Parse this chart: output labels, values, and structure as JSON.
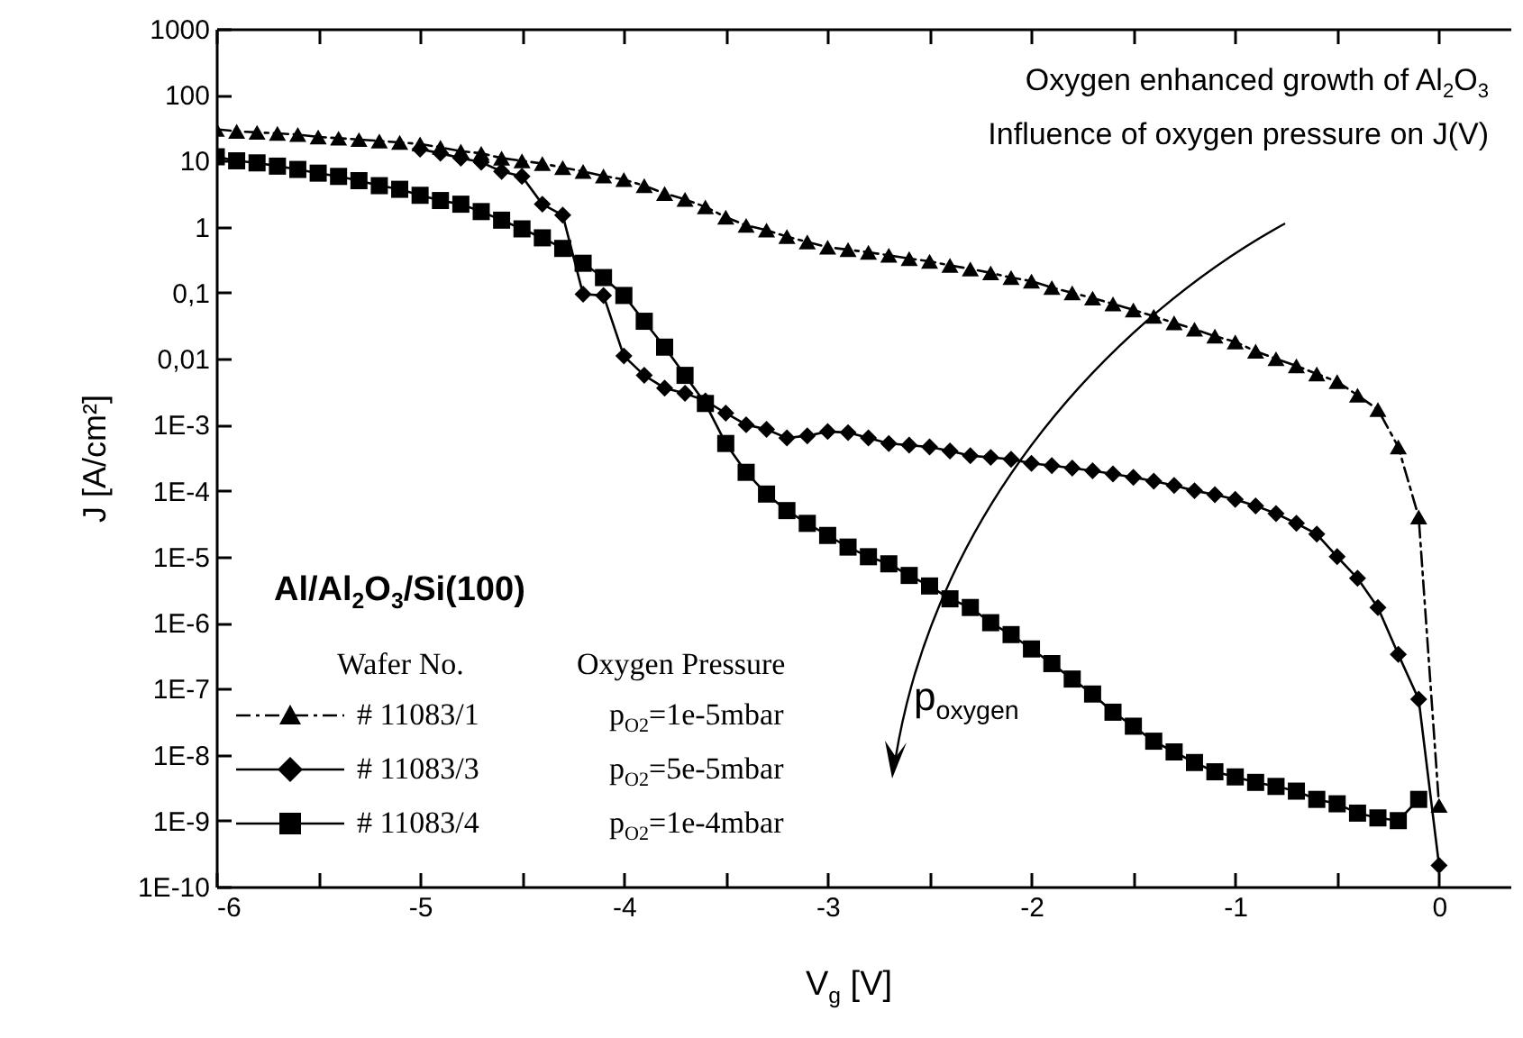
{
  "chart_data": {
    "type": "line",
    "xlabel": "V$_{g}$ [V]",
    "ylabel": "J [A/cm²]",
    "legend_title": "Wafer No.",
    "legend": "bottom left",
    "grid": false,
    "log": "y",
    "xlim": [
      -6,
      0.35
    ],
    "xticks": [
      -6,
      {
        "value": -5.5,
        "label": null
      },
      -5,
      {
        "value": -4.5,
        "label": null
      },
      -4,
      {
        "value": -3.5,
        "label": null
      },
      -3,
      {
        "value": -2.5,
        "label": null
      },
      -2,
      {
        "value": -1.5,
        "label": null
      },
      -1,
      {
        "value": -0.5,
        "label": null
      },
      0
    ],
    "ylim": [
      1e-10,
      1000
    ],
    "yticks": [
      {
        "value": 1e-10,
        "label": "1E-10"
      },
      {
        "value": 1e-09,
        "label": "1E-9"
      },
      {
        "value": 1e-08,
        "label": "1E-8"
      },
      {
        "value": 1e-07,
        "label": "1E-7"
      },
      {
        "value": 1e-06,
        "label": "1E-6"
      },
      {
        "value": 1e-05,
        "label": "1E-5"
      },
      {
        "value": 0.0001,
        "label": "1E-4"
      },
      {
        "value": 0.001,
        "label": "1E-3"
      },
      {
        "value": 0.01,
        "label": "0,01"
      },
      {
        "value": 0.1,
        "label": "0,1"
      },
      1,
      10,
      100,
      1000
    ],
    "annotations": [
      "Oxygen enhanced growth of Al$_{2}$O$_{3}$",
      "Influence of oxygen pressure on J(V)",
      "Al/Al$_{2}$O$_{3}$/Si(100)",
      "Oxygen Pressure",
      "p$_{O2}$=1e-5mbar",
      "p$_{O2}$=5e-5mbar",
      "p$_{O2}$=1e-4mbar",
      "p$_{oxygen}$"
    ],
    "series": [
      {
        "name": "# 11083/1",
        "color": "#000000",
        "marker": "triangle",
        "line_style": "dashdot",
        "x": [
          -6,
          -5.9,
          -5.8,
          -5.7,
          -5.6,
          -5.5,
          -5.4,
          -5.3,
          -5.2,
          -5.1,
          -5,
          -4.9,
          -4.8,
          -4.7,
          -4.6,
          -4.5,
          -4.4,
          -4.3,
          -4.2,
          -4.1,
          -4,
          -3.9,
          -3.8,
          -3.7,
          -3.6,
          -3.5,
          -3.4,
          -3.3,
          -3.2,
          -3.1,
          -3,
          -2.9,
          -2.8,
          -2.7,
          -2.6,
          -2.5,
          -2.4,
          -2.3,
          -2.2,
          -2.1,
          -2,
          -1.9,
          -1.8,
          -1.7,
          -1.6,
          -1.5,
          -1.4,
          -1.3,
          -1.2,
          -1.1,
          -1,
          -0.9,
          -0.8,
          -0.7,
          -0.6,
          -0.5,
          -0.4,
          -0.3,
          -0.2,
          -0.1,
          0
        ],
        "values": [
          30,
          28,
          27,
          26,
          25,
          23,
          22,
          21,
          20,
          19,
          18,
          16,
          14,
          13,
          11,
          10,
          9.1,
          7.9,
          6.9,
          5.9,
          5.2,
          4.2,
          3.2,
          2.6,
          2.0,
          1.4,
          1.05,
          0.89,
          0.71,
          0.59,
          0.49,
          0.45,
          0.41,
          0.37,
          0.33,
          0.3,
          0.26,
          0.23,
          0.2,
          0.17,
          0.15,
          0.12,
          0.1,
          0.083,
          0.068,
          0.055,
          0.044,
          0.035,
          0.028,
          0.022,
          0.018,
          0.013,
          0.01,
          0.0078,
          0.0059,
          0.0045,
          0.0028,
          0.0017,
          0.00046,
          4e-05,
          1.7e-09
        ]
      },
      {
        "name": "# 11083/3",
        "color": "#000000",
        "marker": "diamond",
        "line_style": "solid",
        "x": [
          -5,
          -4.9,
          -4.8,
          -4.7,
          -4.6,
          -4.5,
          -4.4,
          -4.3,
          -4.2,
          -4.1,
          -4,
          -3.9,
          -3.8,
          -3.7,
          -3.6,
          -3.5,
          -3.4,
          -3.3,
          -3.2,
          -3.1,
          -3,
          -2.9,
          -2.8,
          -2.7,
          -2.6,
          -2.5,
          -2.4,
          -2.3,
          -2.2,
          -2.1,
          -2,
          -1.9,
          -1.8,
          -1.7,
          -1.6,
          -1.5,
          -1.4,
          -1.3,
          -1.2,
          -1.1,
          -1,
          -0.9,
          -0.8,
          -0.7,
          -0.6,
          -0.5,
          -0.4,
          -0.3,
          -0.2,
          -0.1,
          0
        ],
        "values": [
          15,
          13,
          11,
          9.5,
          6.9,
          5.8,
          2.2,
          1.5,
          0.095,
          0.091,
          0.011,
          0.0056,
          0.0036,
          0.003,
          0.0023,
          0.0015,
          0.001,
          0.00085,
          0.00063,
          0.00068,
          0.00079,
          0.00076,
          0.00063,
          0.00052,
          0.00049,
          0.00046,
          0.0004,
          0.00034,
          0.00032,
          0.0003,
          0.00026,
          0.00024,
          0.00022,
          0.0002,
          0.00018,
          0.00016,
          0.00014,
          0.00012,
          0.0001,
          8.7e-05,
          7.4e-05,
          5.9e-05,
          4.5e-05,
          3.2e-05,
          2.2e-05,
          1e-05,
          4.7e-06,
          1.7e-06,
          3.3e-07,
          6.9e-08,
          2.1e-10
        ]
      },
      {
        "name": "# 11083/4",
        "color": "#000000",
        "marker": "square",
        "line_style": "solid",
        "x": [
          -6,
          -5.9,
          -5.8,
          -5.7,
          -5.6,
          -5.5,
          -5.4,
          -5.3,
          -5.2,
          -5.1,
          -5,
          -4.9,
          -4.8,
          -4.7,
          -4.6,
          -4.5,
          -4.4,
          -4.3,
          -4.2,
          -4.1,
          -4,
          -3.9,
          -3.8,
          -3.7,
          -3.6,
          -3.5,
          -3.4,
          -3.3,
          -3.2,
          -3.1,
          -3,
          -2.9,
          -2.8,
          -2.7,
          -2.6,
          -2.5,
          -2.4,
          -2.3,
          -2.2,
          -2.1,
          -2,
          -1.9,
          -1.8,
          -1.7,
          -1.6,
          -1.5,
          -1.4,
          -1.3,
          -1.2,
          -1.1,
          -1,
          -0.9,
          -0.8,
          -0.7,
          -0.6,
          -0.5,
          -0.4,
          -0.3,
          -0.2,
          -0.1
        ],
        "values": [
          11.5,
          10,
          9.3,
          8.3,
          7.4,
          6.5,
          5.8,
          5,
          4.2,
          3.7,
          3,
          2.5,
          2.2,
          1.7,
          1.26,
          0.93,
          0.68,
          0.47,
          0.28,
          0.17,
          0.091,
          0.037,
          0.015,
          0.0056,
          0.0021,
          0.00052,
          0.00019,
          8.9e-05,
          5e-05,
          3.2e-05,
          2.1e-05,
          1.4e-05,
          1e-05,
          7.8e-06,
          5.2e-06,
          3.6e-06,
          2.3e-06,
          1.7e-06,
          1e-06,
          6.6e-07,
          4e-07,
          2.4e-07,
          1.4e-07,
          8.3e-08,
          4.4e-08,
          2.7e-08,
          1.6e-08,
          1.1e-08,
          7.6e-09,
          5.5e-09,
          4.6e-09,
          3.8e-09,
          3.3e-09,
          2.8e-09,
          2.1e-09,
          1.8e-09,
          1.3e-09,
          1.1e-09,
          1e-09,
          2.1e-09
        ]
      }
    ]
  }
}
